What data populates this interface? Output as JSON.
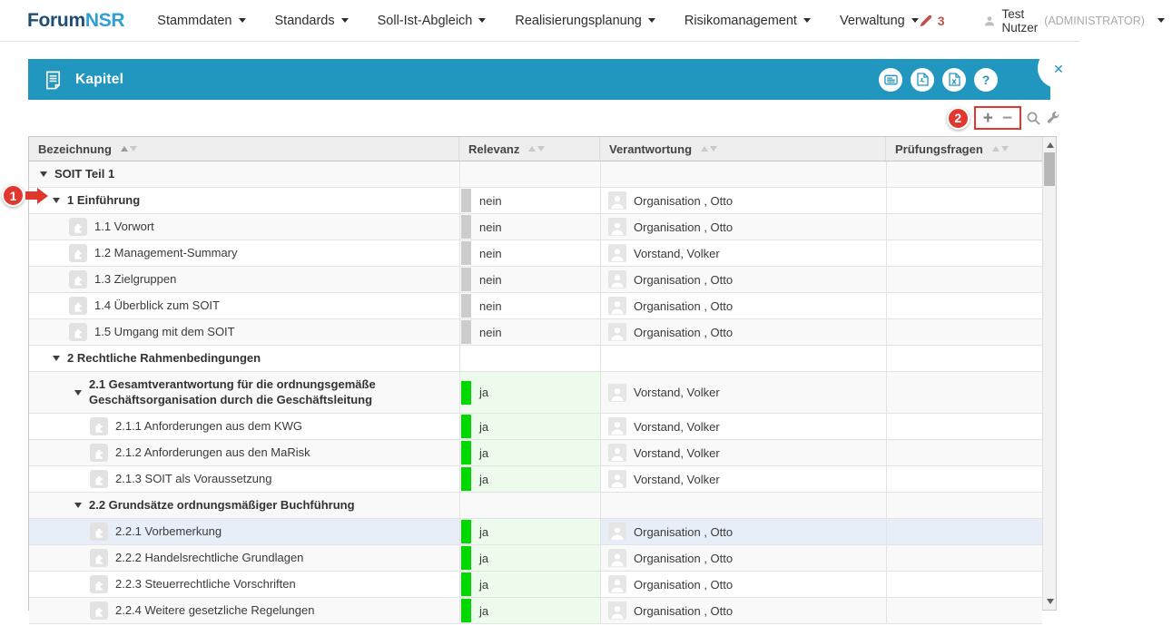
{
  "nav": {
    "logo": {
      "part1": "Forum",
      "part2": "NSR"
    },
    "items": [
      {
        "label": "Stammdaten"
      },
      {
        "label": "Standards"
      },
      {
        "label": "Soll-Ist-Abgleich"
      },
      {
        "label": "Realisierungsplanung"
      },
      {
        "label": "Risikomanagement"
      },
      {
        "label": "Verwaltung"
      }
    ],
    "badge": {
      "icon": "pencil-icon",
      "count": "3"
    },
    "user": {
      "icon": "person-icon",
      "name": "Test Nutzer",
      "role": "(ADMINISTRATOR)"
    }
  },
  "panel": {
    "title": "Kapitel",
    "title_icon": "document-icon",
    "icons": [
      {
        "name": "card-list-icon"
      },
      {
        "name": "pdf-export-icon"
      },
      {
        "name": "excel-export-icon"
      },
      {
        "name": "help-icon",
        "glyph": "?"
      }
    ],
    "close_glyph": "✕"
  },
  "toolbar": {
    "plus_label": "+",
    "minus_label": "−",
    "icons": [
      "search-icon",
      "wrench-icon"
    ]
  },
  "annotations": {
    "marker1": {
      "label": "1"
    },
    "marker2": {
      "label": "2"
    }
  },
  "table": {
    "columns": [
      {
        "label": "Bezeichnung",
        "sorted": true
      },
      {
        "label": "Relevanz",
        "sorted": false
      },
      {
        "label": "Verantwortung",
        "sorted": false
      },
      {
        "label": "Prüfungsfragen",
        "sorted": false
      }
    ],
    "rows": [
      {
        "label": "SOIT Teil 1",
        "level": 0,
        "type": "group",
        "relevanz": "",
        "verantwortung": "",
        "selected": false,
        "two_line": false
      },
      {
        "label": "1 Einführung",
        "level": 1,
        "type": "group",
        "relevanz": "nein",
        "verantwortung": "Organisation , Otto",
        "selected": false,
        "two_line": false
      },
      {
        "label": "1.1 Vorwort",
        "level": 2,
        "type": "leaf",
        "relevanz": "nein",
        "verantwortung": "Organisation , Otto",
        "selected": false,
        "two_line": false
      },
      {
        "label": "1.2 Management-Summary",
        "level": 2,
        "type": "leaf",
        "relevanz": "nein",
        "verantwortung": "Vorstand, Volker",
        "selected": false,
        "two_line": false
      },
      {
        "label": "1.3 Zielgruppen",
        "level": 2,
        "type": "leaf",
        "relevanz": "nein",
        "verantwortung": "Organisation , Otto",
        "selected": false,
        "two_line": false
      },
      {
        "label": "1.4 Überblick zum SOIT",
        "level": 2,
        "type": "leaf",
        "relevanz": "nein",
        "verantwortung": "Organisation , Otto",
        "selected": false,
        "two_line": false
      },
      {
        "label": "1.5 Umgang mit dem SOIT",
        "level": 2,
        "type": "leaf",
        "relevanz": "nein",
        "verantwortung": "Organisation , Otto",
        "selected": false,
        "two_line": false
      },
      {
        "label": "2 Rechtliche Rahmenbedingungen",
        "level": 1,
        "type": "group",
        "relevanz": "",
        "verantwortung": "",
        "selected": false,
        "two_line": false
      },
      {
        "label": "2.1 Gesamtverantwortung für die ordnungsgemäße Geschäftsorganisation durch die Geschäftsleitung",
        "level": 2,
        "type": "group",
        "relevanz": "ja",
        "verantwortung": "Vorstand, Volker",
        "selected": false,
        "two_line": true
      },
      {
        "label": "2.1.1 Anforderungen aus dem KWG",
        "level": 3,
        "type": "leaf",
        "relevanz": "ja",
        "verantwortung": "Vorstand, Volker",
        "selected": false,
        "two_line": false
      },
      {
        "label": "2.1.2 Anforderungen aus den MaRisk",
        "level": 3,
        "type": "leaf",
        "relevanz": "ja",
        "verantwortung": "Vorstand, Volker",
        "selected": false,
        "two_line": false
      },
      {
        "label": "2.1.3 SOIT als Voraussetzung",
        "level": 3,
        "type": "leaf",
        "relevanz": "ja",
        "verantwortung": "Vorstand, Volker",
        "selected": false,
        "two_line": false
      },
      {
        "label": "2.2 Grundsätze ordnungsmäßiger Buchführung",
        "level": 2,
        "type": "group",
        "relevanz": "",
        "verantwortung": "",
        "selected": false,
        "two_line": false
      },
      {
        "label": "2.2.1 Vorbemerkung",
        "level": 3,
        "type": "leaf",
        "relevanz": "ja",
        "verantwortung": "Organisation , Otto",
        "selected": true,
        "two_line": false
      },
      {
        "label": "2.2.2 Handelsrechtliche Grundlagen",
        "level": 3,
        "type": "leaf",
        "relevanz": "ja",
        "verantwortung": "Organisation , Otto",
        "selected": false,
        "two_line": false
      },
      {
        "label": "2.2.3 Steuerrechtliche Vorschriften",
        "level": 3,
        "type": "leaf",
        "relevanz": "ja",
        "verantwortung": "Organisation , Otto",
        "selected": false,
        "two_line": false
      },
      {
        "label": "2.2.4 Weitere gesetzliche Regelungen",
        "level": 3,
        "type": "leaf",
        "relevanz": "ja",
        "verantwortung": "Organisation , Otto",
        "selected": false,
        "two_line": false
      }
    ]
  },
  "colors": {
    "accent_blue": "#2196be",
    "marker_red": "#e0382e",
    "relevance_green": "#00d800",
    "relevance_gray": "#cccccc",
    "selected_row": "#e8eef8"
  }
}
